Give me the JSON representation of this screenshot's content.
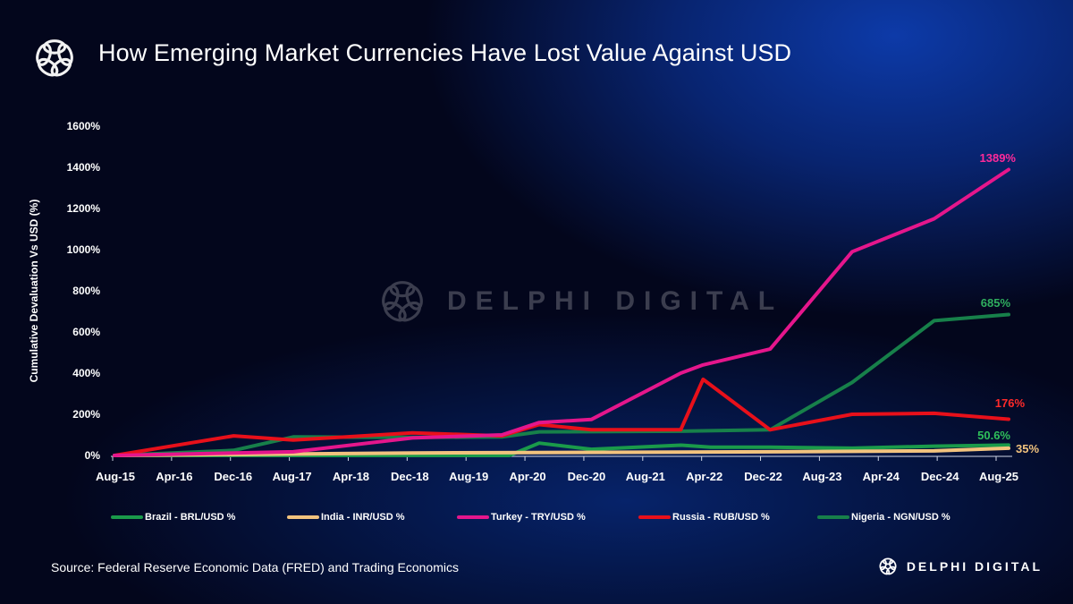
{
  "header": {
    "title": "How Emerging Market Currencies Have Lost Value Against USD",
    "logo_icon": "delphi-knot-logo-icon"
  },
  "watermark": {
    "text": "DELPHI DIGITAL"
  },
  "footer": {
    "source": "Source: Federal Reserve Economic Data (FRED) and Trading Economics",
    "brand": "DELPHI DIGITAL"
  },
  "chart_data": {
    "type": "line",
    "title": "How Emerging Market Currencies Have Lost Value Against USD",
    "xlabel": "",
    "ylabel": "Cumulative Devaluation Vs USD (%)",
    "ylim": [
      0,
      1600
    ],
    "yticks": [
      0,
      200,
      400,
      600,
      800,
      1000,
      1200,
      1400,
      1600
    ],
    "ytick_labels": [
      "0%",
      "200%",
      "400%",
      "600%",
      "800%",
      "1000%",
      "1200%",
      "1400%",
      "1600%"
    ],
    "xlim": [
      "2015-08",
      "2025-08"
    ],
    "xtick_labels": [
      "Aug-15",
      "Apr-16",
      "Dec-16",
      "Aug-17",
      "Apr-18",
      "Dec-18",
      "Aug-19",
      "Apr-20",
      "Dec-20",
      "Aug-21",
      "Apr-22",
      "Dec-22",
      "Aug-23",
      "Apr-24",
      "Dec-24",
      "Aug-25"
    ],
    "grid": false,
    "legend": "bottom",
    "series": [
      {
        "name": "Brazil - BRL/USD %",
        "color": "#1a9a4a",
        "label": "50.6%",
        "points": [
          [
            "2015-08",
            0
          ],
          [
            "2020-01",
            0
          ],
          [
            "2020-05",
            60
          ],
          [
            "2020-12",
            30
          ],
          [
            "2021-12",
            50
          ],
          [
            "2022-04",
            40
          ],
          [
            "2022-12",
            40
          ],
          [
            "2023-11",
            35
          ],
          [
            "2024-10",
            45
          ],
          [
            "2025-08",
            50.6
          ]
        ]
      },
      {
        "name": "India - INR/USD %",
        "color": "#f2c37e",
        "label": "35%",
        "points": [
          [
            "2015-08",
            0
          ],
          [
            "2018-12",
            12
          ],
          [
            "2022-12",
            18
          ],
          [
            "2024-10",
            22
          ],
          [
            "2025-08",
            35
          ]
        ]
      },
      {
        "name": "Turkey - TRY/USD %",
        "color": "#e5168c",
        "label": "1389%",
        "points": [
          [
            "2015-08",
            0
          ],
          [
            "2016-12",
            12
          ],
          [
            "2017-08",
            18
          ],
          [
            "2018-12",
            85
          ],
          [
            "2019-12",
            100
          ],
          [
            "2020-05",
            160
          ],
          [
            "2020-12",
            175
          ],
          [
            "2021-12",
            400
          ],
          [
            "2022-03",
            440
          ],
          [
            "2022-12",
            517
          ],
          [
            "2023-11",
            990
          ],
          [
            "2024-10",
            1150
          ],
          [
            "2025-08",
            1389
          ]
        ]
      },
      {
        "name": "Russia - RUB/USD %",
        "color": "#e8101a",
        "label": "176%",
        "points": [
          [
            "2015-08",
            0
          ],
          [
            "2016-12",
            95
          ],
          [
            "2017-08",
            75
          ],
          [
            "2018-12",
            110
          ],
          [
            "2019-12",
            95
          ],
          [
            "2020-05",
            150
          ],
          [
            "2020-12",
            125
          ],
          [
            "2021-12",
            125
          ],
          [
            "2022-03",
            370
          ],
          [
            "2022-12",
            125
          ],
          [
            "2023-11",
            200
          ],
          [
            "2024-10",
            205
          ],
          [
            "2025-08",
            176
          ]
        ]
      },
      {
        "name": "Nigeria - NGN/USD %",
        "color": "#17804a",
        "label": "685%",
        "points": [
          [
            "2015-08",
            0
          ],
          [
            "2016-12",
            25
          ],
          [
            "2017-08",
            90
          ],
          [
            "2018-12",
            88
          ],
          [
            "2019-12",
            90
          ],
          [
            "2020-05",
            115
          ],
          [
            "2021-12",
            118
          ],
          [
            "2022-12",
            125
          ],
          [
            "2023-11",
            355
          ],
          [
            "2024-10",
            655
          ],
          [
            "2025-08",
            685
          ]
        ]
      }
    ]
  }
}
